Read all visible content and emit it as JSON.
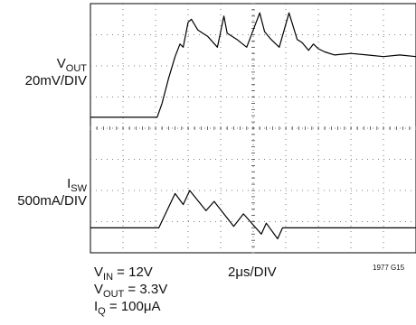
{
  "channels": [
    {
      "main": "V",
      "sub": "OUT",
      "scale": "20mV/DIV"
    },
    {
      "main": "I",
      "sub": "SW",
      "scale": "500mA/DIV"
    }
  ],
  "timebase": "2μs/DIV",
  "conditions": [
    {
      "main": "V",
      "sub": "IN",
      "rest": " = 12V"
    },
    {
      "main": "V",
      "sub": "OUT",
      "rest": " = 3.3V"
    },
    {
      "main": "I",
      "sub": "Q",
      "rest": " = 100μA"
    }
  ],
  "figure_id": "1977 G15",
  "chart_data": {
    "type": "line",
    "grid": {
      "x_divisions": 10,
      "y_divisions": 8
    },
    "x_unit": "div",
    "y_unit": "div",
    "xlim": [
      0,
      10
    ],
    "ylim": [
      0,
      8
    ],
    "series": [
      {
        "name": "VOUT",
        "x": [
          0,
          2.05,
          2.2,
          2.4,
          2.6,
          2.75,
          2.85,
          3.0,
          3.1,
          3.3,
          3.6,
          3.9,
          4.1,
          4.2,
          4.5,
          4.8,
          5.2,
          5.35,
          5.55,
          5.8,
          6.1,
          6.35,
          6.5,
          6.7,
          6.85,
          7.0,
          7.2,
          7.5,
          8.0,
          8.5,
          9.0,
          9.5,
          10.0
        ],
        "y": [
          4.35,
          4.35,
          4.8,
          5.6,
          6.3,
          6.7,
          6.6,
          7.4,
          7.5,
          7.15,
          6.95,
          6.6,
          7.6,
          7.05,
          6.85,
          6.6,
          7.7,
          7.1,
          6.85,
          6.6,
          7.7,
          6.85,
          6.75,
          6.5,
          6.7,
          6.55,
          6.45,
          6.35,
          6.4,
          6.35,
          6.3,
          6.35,
          6.3
        ]
      },
      {
        "name": "ISW",
        "x": [
          0,
          2.1,
          2.6,
          2.85,
          3.05,
          3.55,
          3.8,
          4.4,
          4.7,
          5.25,
          5.4,
          5.75,
          5.9,
          6.3,
          10.0
        ],
        "y": [
          0.8,
          0.8,
          1.9,
          1.55,
          2.0,
          1.35,
          1.65,
          0.85,
          1.25,
          0.6,
          0.95,
          0.45,
          0.8,
          0.8,
          0.8
        ]
      }
    ]
  }
}
